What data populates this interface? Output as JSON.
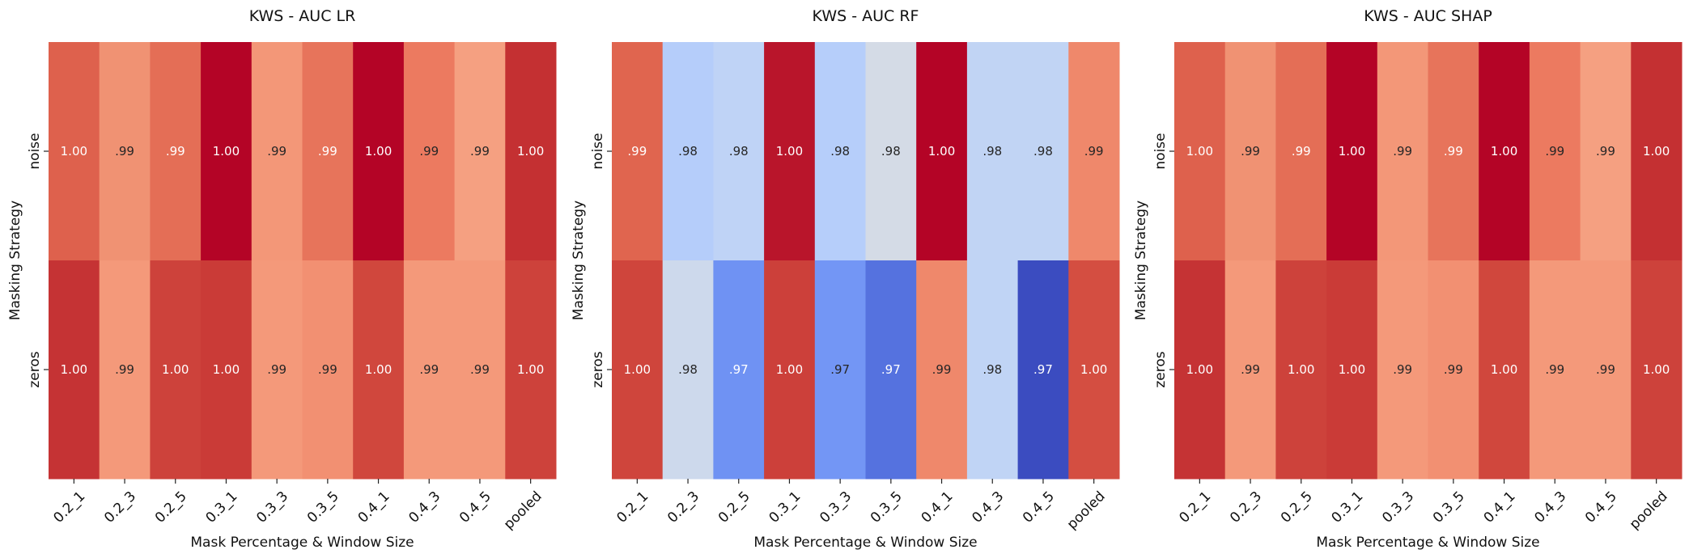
{
  "chart_data": [
    {
      "type": "heatmap",
      "title": "KWS - AUC LR",
      "xlabel": "Mask Percentage & Window Size",
      "ylabel": "Masking Strategy",
      "x": [
        "0.2_1",
        "0.2_3",
        "0.2_5",
        "0.3_1",
        "0.3_3",
        "0.3_5",
        "0.4_1",
        "0.4_3",
        "0.4_5",
        "pooled"
      ],
      "y": [
        "noise",
        "zeros"
      ],
      "labels": [
        [
          "1.00",
          ".99",
          ".99",
          "1.00",
          ".99",
          ".99",
          "1.00",
          ".99",
          ".99",
          "1.00"
        ],
        [
          "1.00",
          ".99",
          "1.00",
          "1.00",
          ".99",
          ".99",
          "1.00",
          ".99",
          ".99",
          "1.00"
        ]
      ],
      "colors": [
        [
          "#de614d",
          "#f09273",
          "#e46e56",
          "#b40426",
          "#f39778",
          "#e7745b",
          "#b40426",
          "#ec7a60",
          "#f5a081",
          "#c43032"
        ],
        [
          "#c53334",
          "#f4997a",
          "#cd423b",
          "#ca3b37",
          "#f4997a",
          "#f29072",
          "#d0473d",
          "#f4997a",
          "#f4997a",
          "#cd423b"
        ]
      ]
    },
    {
      "type": "heatmap",
      "title": "KWS - AUC RF",
      "xlabel": "Mask Percentage & Window Size",
      "ylabel": "Masking Strategy",
      "x": [
        "0.2_1",
        "0.2_3",
        "0.2_5",
        "0.3_1",
        "0.3_3",
        "0.3_5",
        "0.4_1",
        "0.4_3",
        "0.4_5",
        "pooled"
      ],
      "y": [
        "noise",
        "zeros"
      ],
      "labels": [
        [
          ".99",
          ".98",
          ".98",
          "1.00",
          ".98",
          ".98",
          "1.00",
          ".98",
          ".98",
          ".99"
        ],
        [
          "1.00",
          ".98",
          ".97",
          "1.00",
          ".97",
          ".97",
          ".99",
          ".98",
          ".97",
          "1.00"
        ]
      ],
      "colors": [
        [
          "#e0654f",
          "#b5cdfa",
          "#bfd3f6",
          "#b9152b",
          "#b6cefa",
          "#d4dbe6",
          "#b40426",
          "#c1d4f4",
          "#c1d4f4",
          "#ef886b"
        ],
        [
          "#cf453c",
          "#cdd9ec",
          "#6f92f3",
          "#cc403a",
          "#7396f5",
          "#5572df",
          "#ef886b",
          "#c0d4f5",
          "#3b4cc0",
          "#d44e41"
        ]
      ]
    },
    {
      "type": "heatmap",
      "title": "KWS - AUC SHAP",
      "xlabel": "Mask Percentage & Window Size",
      "ylabel": "Masking Strategy",
      "x": [
        "0.2_1",
        "0.2_3",
        "0.2_5",
        "0.3_1",
        "0.3_3",
        "0.3_5",
        "0.4_1",
        "0.4_3",
        "0.4_5",
        "pooled"
      ],
      "y": [
        "noise",
        "zeros"
      ],
      "labels": [
        [
          "1.00",
          ".99",
          ".99",
          "1.00",
          ".99",
          ".99",
          "1.00",
          ".99",
          ".99",
          "1.00"
        ],
        [
          "1.00",
          ".99",
          "1.00",
          "1.00",
          ".99",
          ".99",
          "1.00",
          ".99",
          ".99",
          "1.00"
        ]
      ],
      "colors": [
        [
          "#de614d",
          "#f09273",
          "#e46e56",
          "#b40426",
          "#f39778",
          "#e7745b",
          "#b40426",
          "#ec7a60",
          "#f5a081",
          "#c43032"
        ],
        [
          "#c53334",
          "#f4997a",
          "#cd423b",
          "#ca3b37",
          "#f4997a",
          "#f29072",
          "#d0473d",
          "#f4997a",
          "#f4997a",
          "#cd423b"
        ]
      ]
    }
  ]
}
